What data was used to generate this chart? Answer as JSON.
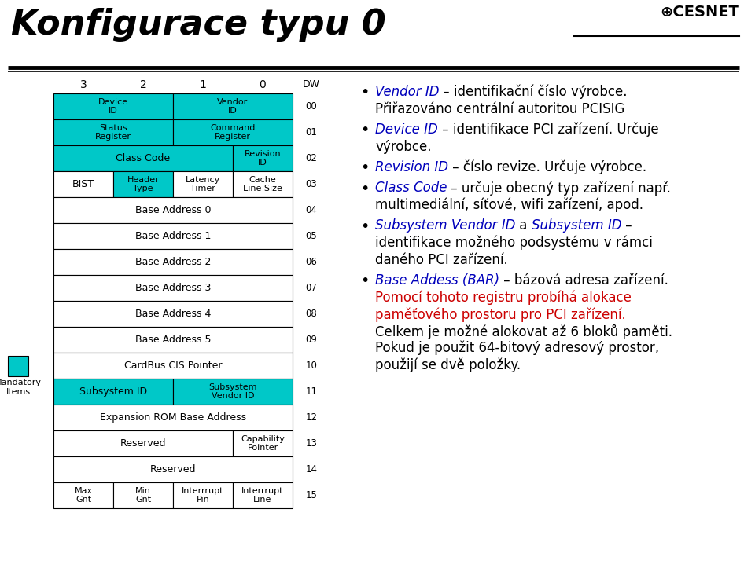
{
  "title": "Konfigurace typu 0",
  "bg_color": "#ffffff",
  "teal_color": "#00C8C8",
  "white_color": "#ffffff",
  "black_color": "#000000",
  "blue_color": "#0000BB",
  "red_color": "#CC0000",
  "rows": [
    {
      "dw": "00",
      "cells": [
        {
          "text": "Device\nID",
          "span": [
            0,
            1
          ],
          "teal": true
        },
        {
          "text": "Vendor\nID",
          "span": [
            2,
            3
          ],
          "teal": true
        }
      ]
    },
    {
      "dw": "01",
      "cells": [
        {
          "text": "Status\nRegister",
          "span": [
            0,
            1
          ],
          "teal": true
        },
        {
          "text": "Command\nRegister",
          "span": [
            2,
            3
          ],
          "teal": true
        }
      ]
    },
    {
      "dw": "02",
      "cells": [
        {
          "text": "Class Code",
          "span": [
            0,
            2
          ],
          "teal": true
        },
        {
          "text": "Revision\nID",
          "span": [
            3,
            3
          ],
          "teal": true
        }
      ]
    },
    {
      "dw": "03",
      "cells": [
        {
          "text": "BIST",
          "span": [
            0,
            0
          ],
          "teal": false
        },
        {
          "text": "Header\nType",
          "span": [
            1,
            1
          ],
          "teal": true
        },
        {
          "text": "Latency\nTimer",
          "span": [
            2,
            2
          ],
          "teal": false
        },
        {
          "text": "Cache\nLine Size",
          "span": [
            3,
            3
          ],
          "teal": false
        }
      ]
    },
    {
      "dw": "04",
      "cells": [
        {
          "text": "Base Address 0",
          "span": [
            0,
            3
          ],
          "teal": false
        }
      ]
    },
    {
      "dw": "05",
      "cells": [
        {
          "text": "Base Address 1",
          "span": [
            0,
            3
          ],
          "teal": false
        }
      ]
    },
    {
      "dw": "06",
      "cells": [
        {
          "text": "Base Address 2",
          "span": [
            0,
            3
          ],
          "teal": false
        }
      ]
    },
    {
      "dw": "07",
      "cells": [
        {
          "text": "Base Address 3",
          "span": [
            0,
            3
          ],
          "teal": false
        }
      ]
    },
    {
      "dw": "08",
      "cells": [
        {
          "text": "Base Address 4",
          "span": [
            0,
            3
          ],
          "teal": false
        }
      ]
    },
    {
      "dw": "09",
      "cells": [
        {
          "text": "Base Address 5",
          "span": [
            0,
            3
          ],
          "teal": false
        }
      ]
    },
    {
      "dw": "10",
      "cells": [
        {
          "text": "CardBus CIS Pointer",
          "span": [
            0,
            3
          ],
          "teal": false
        }
      ]
    },
    {
      "dw": "11",
      "cells": [
        {
          "text": "Subsystem ID",
          "span": [
            0,
            1
          ],
          "teal": true
        },
        {
          "text": "Subsystem\nVendor ID",
          "span": [
            2,
            3
          ],
          "teal": true
        }
      ]
    },
    {
      "dw": "12",
      "cells": [
        {
          "text": "Expansion ROM Base Address",
          "span": [
            0,
            3
          ],
          "teal": false
        }
      ]
    },
    {
      "dw": "13",
      "cells": [
        {
          "text": "Reserved",
          "span": [
            0,
            2
          ],
          "teal": false
        },
        {
          "text": "Capability\nPointer",
          "span": [
            3,
            3
          ],
          "teal": false
        }
      ]
    },
    {
      "dw": "14",
      "cells": [
        {
          "text": "Reserved",
          "span": [
            0,
            3
          ],
          "teal": false
        }
      ]
    },
    {
      "dw": "15",
      "cells": [
        {
          "text": "Max\nGnt",
          "span": [
            0,
            0
          ],
          "teal": false
        },
        {
          "text": "Min\nGnt",
          "span": [
            1,
            1
          ],
          "teal": false
        },
        {
          "text": "Interrrupt\nPin",
          "span": [
            2,
            2
          ],
          "teal": false
        },
        {
          "text": "Interrrupt\nLine",
          "span": [
            3,
            3
          ],
          "teal": false
        }
      ]
    }
  ],
  "bullet_groups": [
    {
      "bullet": true,
      "lines": [
        [
          {
            "t": "Vendor ID",
            "s": "bi"
          },
          {
            "t": " – identifikační číslo výrobce.",
            "s": "n"
          }
        ],
        [
          {
            "t": "Přiřazováno centrální autoritou PCISIG",
            "s": "n"
          }
        ]
      ]
    },
    {
      "bullet": true,
      "lines": [
        [
          {
            "t": "Device ID",
            "s": "bi"
          },
          {
            "t": " – identifikace PCI zařízení. Určuje",
            "s": "n"
          }
        ],
        [
          {
            "t": "výrobce.",
            "s": "n"
          }
        ]
      ]
    },
    {
      "bullet": true,
      "lines": [
        [
          {
            "t": "Revision ID",
            "s": "bi"
          },
          {
            "t": " – číslo revize. Určuje výrobce.",
            "s": "n"
          }
        ]
      ]
    },
    {
      "bullet": true,
      "lines": [
        [
          {
            "t": "Class Code",
            "s": "bi"
          },
          {
            "t": " – určuje obecný typ zařízení např.",
            "s": "n"
          }
        ],
        [
          {
            "t": "multimediální, síťové, wifi zařízení, apod.",
            "s": "n"
          }
        ]
      ]
    },
    {
      "bullet": true,
      "lines": [
        [
          {
            "t": "Subsystem Vendor ID",
            "s": "bi"
          },
          {
            "t": " a ",
            "s": "n"
          },
          {
            "t": "Subsystem ID",
            "s": "bi"
          },
          {
            "t": " –",
            "s": "n"
          }
        ],
        [
          {
            "t": "identifikace možného podsystému v rámci",
            "s": "n"
          }
        ],
        [
          {
            "t": "daného PCI zařízení.",
            "s": "n"
          }
        ]
      ]
    },
    {
      "bullet": true,
      "lines": [
        [
          {
            "t": "Base Addess (BAR)",
            "s": "bi"
          },
          {
            "t": " – bázová adresa zařízení.",
            "s": "n"
          }
        ],
        [
          {
            "t": "Pomocí tohoto registru probíhá alokace",
            "s": "r"
          }
        ],
        [
          {
            "t": "paměťového prostoru pro PCI zařízení.",
            "s": "r"
          }
        ],
        [
          {
            "t": "Celkem je možné alokovat až 6 bloků paměti.",
            "s": "n"
          }
        ],
        [
          {
            "t": "Pokud je použit 64-bitový adresový prostor,",
            "s": "n"
          }
        ],
        [
          {
            "t": "použijí se dvě položky.",
            "s": "n"
          }
        ]
      ]
    }
  ]
}
